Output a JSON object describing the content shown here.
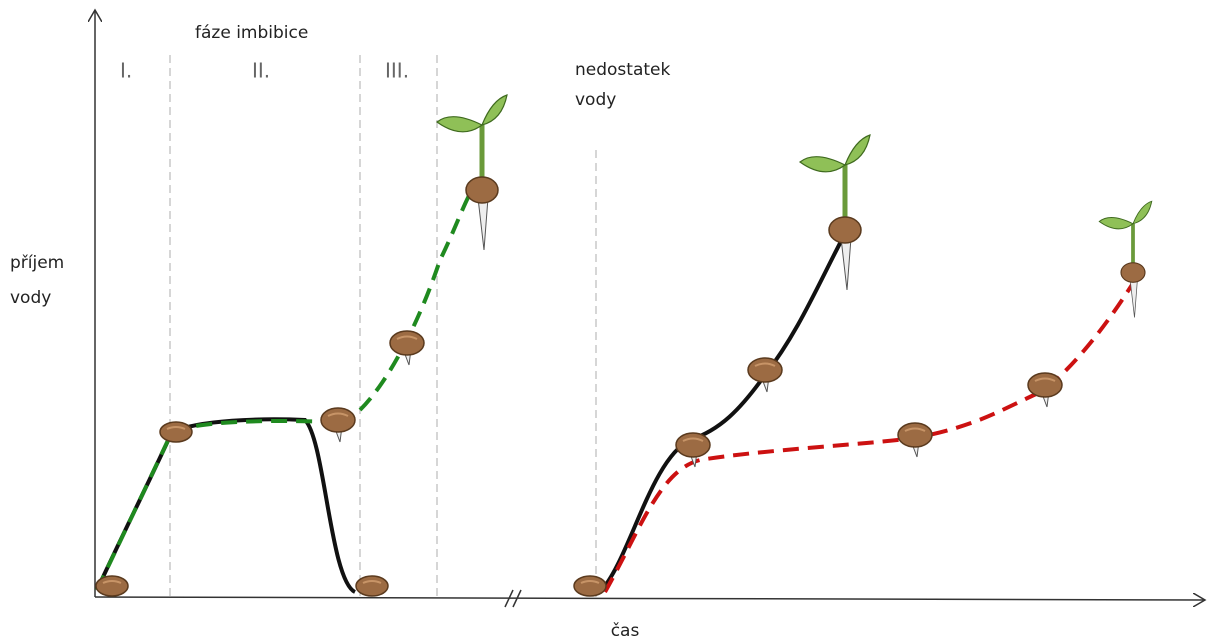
{
  "phase_title": "fáze imbibice",
  "phases": [
    "I.",
    "II.",
    "III."
  ],
  "annotation": [
    "nedostatek",
    "vody"
  ],
  "y_axis_label": [
    "příjem",
    "vody"
  ],
  "x_axis_label": "čas"
}
